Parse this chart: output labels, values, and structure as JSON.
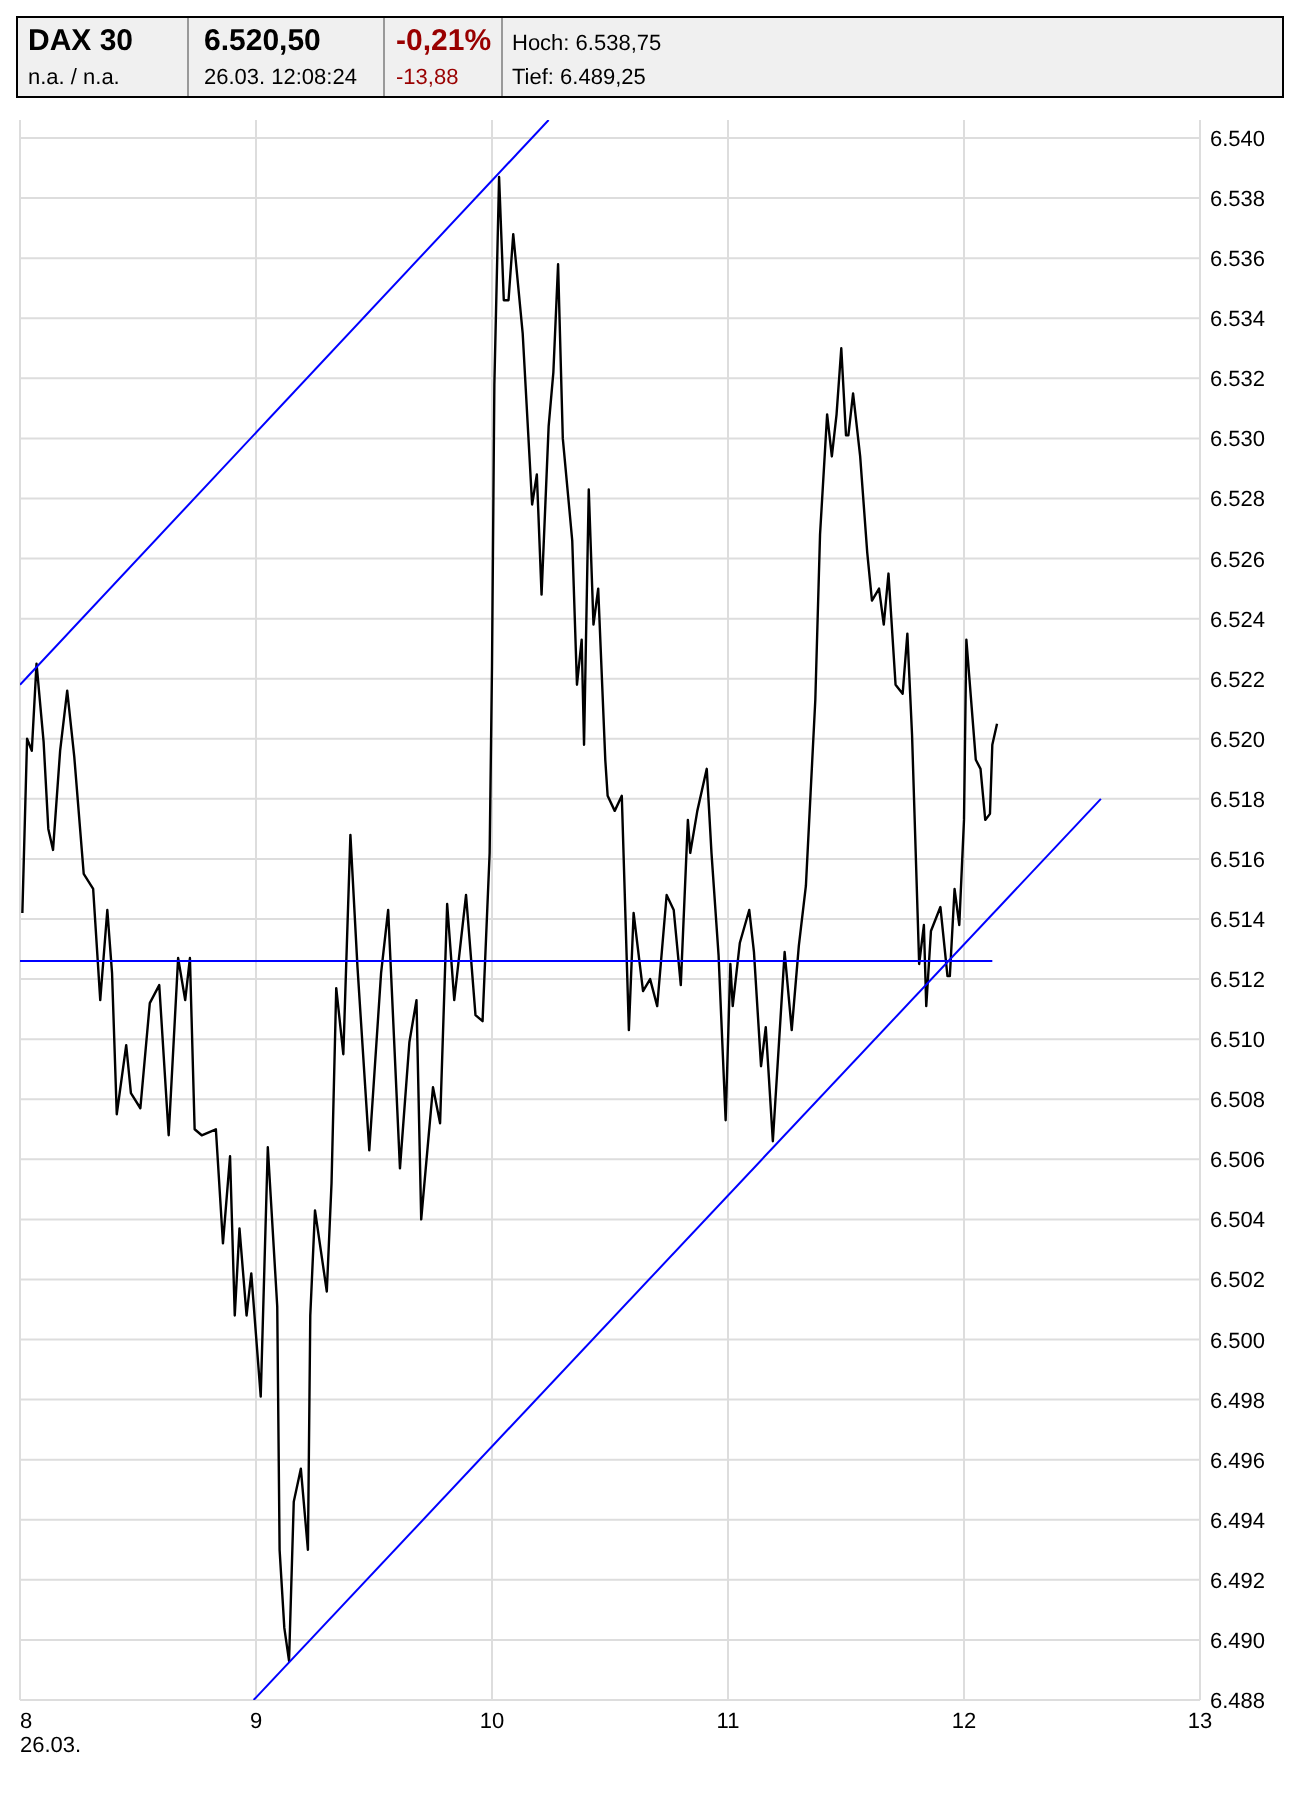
{
  "chart_data": {
    "type": "line",
    "title": "DAX 30",
    "annotations": [
      "n.a.  /  n.a.",
      "6.520,50",
      "26.03. 12:08:24",
      "-0,21%",
      "-13,88",
      "Hoch: 6.538,75",
      "Tief: 6.489,25"
    ],
    "xlim": [
      8,
      13
    ],
    "xticks": [
      {
        "value": 8,
        "label": "8\n26.03."
      },
      9,
      10,
      11,
      12,
      13
    ],
    "ylim": [
      6488,
      6540.6
    ],
    "yticks": [
      {
        "value": 6488,
        "label": "6.488"
      },
      {
        "value": 6490,
        "label": "6.490"
      },
      {
        "value": 6492,
        "label": "6.492"
      },
      {
        "value": 6494,
        "label": "6.494"
      },
      {
        "value": 6496,
        "label": "6.496"
      },
      {
        "value": 6498,
        "label": "6.498"
      },
      {
        "value": 6500,
        "label": "6.500"
      },
      {
        "value": 6502,
        "label": "6.502"
      },
      {
        "value": 6504,
        "label": "6.504"
      },
      {
        "value": 6506,
        "label": "6.506"
      },
      {
        "value": 6508,
        "label": "6.508"
      },
      {
        "value": 6510,
        "label": "6.510"
      },
      {
        "value": 6512,
        "label": "6.512"
      },
      {
        "value": 6514,
        "label": "6.514"
      },
      {
        "value": 6516,
        "label": "6.516"
      },
      {
        "value": 6518,
        "label": "6.518"
      },
      {
        "value": 6520,
        "label": "6.520"
      },
      {
        "value": 6522,
        "label": "6.522"
      },
      {
        "value": 6524,
        "label": "6.524"
      },
      {
        "value": 6526,
        "label": "6.526"
      },
      {
        "value": 6528,
        "label": "6.528"
      },
      {
        "value": 6530,
        "label": "6.530"
      },
      {
        "value": 6532,
        "label": "6.532"
      },
      {
        "value": 6534,
        "label": "6.534"
      },
      {
        "value": 6536,
        "label": "6.536"
      },
      {
        "value": 6538,
        "label": "6.538"
      },
      {
        "value": 6540,
        "label": "6.540"
      }
    ],
    "grid": true,
    "series": [
      {
        "color": "#000000",
        "x": [
          8.01,
          8.03,
          8.05,
          8.07,
          8.1,
          8.12,
          8.14,
          8.17,
          8.2,
          8.23,
          8.27,
          8.31,
          8.34,
          8.37,
          8.39,
          8.41,
          8.45,
          8.47,
          8.51,
          8.55,
          8.59,
          8.63,
          8.67,
          8.7,
          8.72,
          8.74,
          8.77,
          8.83,
          8.86,
          8.89,
          8.91,
          8.93,
          8.96,
          8.98,
          9.02,
          9.05,
          9.09,
          9.1,
          9.12,
          9.14,
          9.16,
          9.19,
          9.22,
          9.23,
          9.25,
          9.3,
          9.32,
          9.34,
          9.37,
          9.4,
          9.43,
          9.48,
          9.53,
          9.56,
          9.61,
          9.65,
          9.68,
          9.7,
          9.75,
          9.78,
          9.81,
          9.84,
          9.89,
          9.93,
          9.96,
          9.99,
          10.0,
          10.01,
          10.03,
          10.05,
          10.07,
          10.09,
          10.13,
          10.17,
          10.19,
          10.21,
          10.24,
          10.26,
          10.28,
          10.3,
          10.34,
          10.36,
          10.38,
          10.39,
          10.41,
          10.43,
          10.45,
          10.48,
          10.49,
          10.52,
          10.55,
          10.58,
          10.6,
          10.64,
          10.67,
          10.7,
          10.74,
          10.77,
          10.8,
          10.83,
          10.84,
          10.87,
          10.91,
          10.93,
          10.96,
          10.99,
          11.01,
          11.02,
          11.05,
          11.09,
          11.11,
          11.14,
          11.16,
          11.19,
          11.24,
          11.27,
          11.3,
          11.33,
          11.35,
          11.37,
          11.39,
          11.42,
          11.44,
          11.46,
          11.48,
          11.5,
          11.51,
          11.53,
          11.56,
          11.59,
          11.61,
          11.64,
          11.66,
          11.68,
          11.71,
          11.74,
          11.76,
          11.78,
          11.81,
          11.83,
          11.84,
          11.86,
          11.9,
          11.93,
          11.94,
          11.96,
          11.98,
          12.0,
          12.01,
          12.05,
          12.07,
          12.09,
          12.11,
          12.12,
          12.14
        ],
        "values": [
          6514.2,
          6520.0,
          6519.6,
          6522.5,
          6519.9,
          6517.0,
          6516.3,
          6519.6,
          6521.6,
          6519.4,
          6515.5,
          6515.0,
          6511.3,
          6514.3,
          6512.2,
          6507.5,
          6509.8,
          6508.2,
          6507.7,
          6511.2,
          6511.8,
          6506.8,
          6512.7,
          6511.3,
          6512.7,
          6507.0,
          6506.8,
          6507.0,
          6503.2,
          6506.1,
          6500.8,
          6503.7,
          6500.8,
          6502.2,
          6498.1,
          6506.4,
          6501.1,
          6493.0,
          6490.4,
          6489.3,
          6494.6,
          6495.7,
          6493.0,
          6500.8,
          6504.3,
          6501.6,
          6505.2,
          6511.7,
          6509.5,
          6516.8,
          6512.4,
          6506.3,
          6512.2,
          6514.3,
          6505.7,
          6509.9,
          6511.3,
          6504.0,
          6508.4,
          6507.2,
          6514.5,
          6511.3,
          6514.8,
          6510.8,
          6510.6,
          6516.2,
          6522.4,
          6531.8,
          6538.7,
          6534.6,
          6534.6,
          6536.8,
          6533.5,
          6527.8,
          6528.8,
          6524.8,
          6530.4,
          6532.2,
          6535.8,
          6530.0,
          6526.6,
          6521.8,
          6523.3,
          6519.8,
          6528.3,
          6523.8,
          6525.0,
          6519.3,
          6518.1,
          6517.6,
          6518.1,
          6510.3,
          6514.2,
          6511.6,
          6512.0,
          6511.1,
          6514.8,
          6514.3,
          6511.8,
          6517.3,
          6516.2,
          6517.6,
          6519.0,
          6516.2,
          6512.8,
          6507.3,
          6512.5,
          6511.1,
          6513.2,
          6514.3,
          6512.9,
          6509.1,
          6510.4,
          6506.6,
          6512.9,
          6510.3,
          6513.1,
          6515.1,
          6518.2,
          6521.3,
          6526.8,
          6530.8,
          6529.4,
          6530.8,
          6533.0,
          6530.1,
          6530.1,
          6531.5,
          6529.4,
          6526.2,
          6524.6,
          6525.0,
          6523.8,
          6525.5,
          6521.8,
          6521.5,
          6523.5,
          6520.1,
          6512.5,
          6513.8,
          6511.1,
          6513.6,
          6514.4,
          6512.1,
          6512.1,
          6515.0,
          6513.8,
          6517.3,
          6523.3,
          6519.3,
          6519.0,
          6517.3,
          6517.5,
          6519.8,
          6520.5
        ]
      },
      {
        "color": "#0000ff",
        "x": [
          8.0,
          10.24
        ],
        "values": [
          6521.8,
          6540.6
        ]
      },
      {
        "color": "#0000ff",
        "x": [
          8.99,
          12.58
        ],
        "values": [
          6488.0,
          6518.0
        ]
      },
      {
        "color": "#0000ff",
        "x": [
          8.0,
          12.12
        ],
        "values": [
          6512.6,
          6512.6
        ]
      }
    ]
  }
}
